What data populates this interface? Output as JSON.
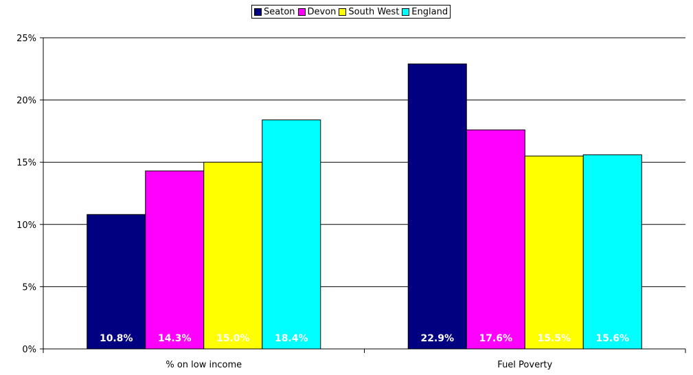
{
  "chart_data": {
    "type": "bar",
    "categories": [
      "% on low income",
      "Fuel Poverty"
    ],
    "series": [
      {
        "name": "Seaton",
        "color": "#000080",
        "values": [
          10.8,
          22.9
        ],
        "labels": [
          "10.8%",
          "22.9%"
        ]
      },
      {
        "name": "Devon",
        "color": "#FF00FF",
        "values": [
          14.3,
          17.6
        ],
        "labels": [
          "14.3%",
          "17.6%"
        ]
      },
      {
        "name": "South West",
        "color": "#FFFF00",
        "values": [
          15.0,
          15.5
        ],
        "labels": [
          "15.0%",
          "15.5%"
        ]
      },
      {
        "name": "England",
        "color": "#00FFFF",
        "values": [
          18.4,
          15.6
        ],
        "labels": [
          "18.4%",
          "15.6%"
        ]
      }
    ],
    "ylim": [
      0,
      25
    ],
    "yticks": [
      "0%",
      "5%",
      "10%",
      "15%",
      "20%",
      "25%"
    ],
    "ytick_values": [
      0,
      5,
      10,
      15,
      20,
      25
    ],
    "grid": true,
    "legend_position": "top-center",
    "data_label_color": "#ffffff"
  }
}
